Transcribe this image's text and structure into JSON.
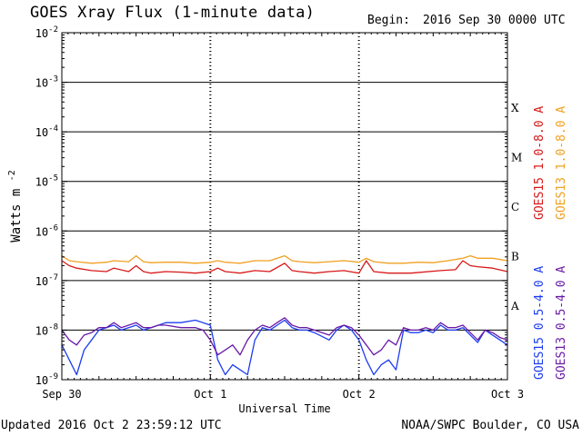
{
  "header": {
    "title": "GOES Xray Flux (1-minute data)",
    "begin_label": "Begin:",
    "begin_value": "2016 Sep 30 0000 UTC"
  },
  "footer": {
    "updated": "Updated 2016 Oct  2 23:59:12 UTC",
    "source": "NOAA/SWPC Boulder, CO USA"
  },
  "chart_data": {
    "type": "line",
    "title": "GOES Xray Flux (1-minute data)",
    "xlabel": "Universal Time",
    "ylabel": "Watts m",
    "ylabel_exponent": "-2",
    "yscale": "log",
    "ylim": [
      1e-09,
      0.01
    ],
    "xlim_days": [
      0,
      3
    ],
    "x_ticks": [
      {
        "day": 0,
        "label": "Sep 30"
      },
      {
        "day": 1,
        "label": "Oct 1"
      },
      {
        "day": 2,
        "label": "Oct 2"
      },
      {
        "day": 3,
        "label": "Oct 3"
      }
    ],
    "y_ticks": [
      {
        "base": "10",
        "exp": "-9",
        "value": -9
      },
      {
        "base": "10",
        "exp": "-8",
        "value": -8
      },
      {
        "base": "10",
        "exp": "-7",
        "value": -7
      },
      {
        "base": "10",
        "exp": "-6",
        "value": -6
      },
      {
        "base": "10",
        "exp": "-5",
        "value": -5
      },
      {
        "base": "10",
        "exp": "-4",
        "value": -4
      },
      {
        "base": "10",
        "exp": "-3",
        "value": -3
      },
      {
        "base": "10",
        "exp": "-2",
        "value": -2
      }
    ],
    "flare_classes": [
      {
        "label": "A",
        "value": -7.5
      },
      {
        "label": "B",
        "value": -6.5
      },
      {
        "label": "C",
        "value": -5.5
      },
      {
        "label": "M",
        "value": -4.5
      },
      {
        "label": "X",
        "value": -3.5
      }
    ],
    "grid": {
      "horizontal_lines": [
        -8,
        -7,
        -6,
        -5,
        -4,
        -3
      ],
      "dotted_day_lines": [
        1,
        2
      ]
    },
    "legend_placement": "right",
    "legend": [
      {
        "label": "GOES15 1.0-8.0 A",
        "color": "#d81818",
        "group": "long"
      },
      {
        "label": "GOES13 1.0-8.0 A",
        "color": "#f0a020",
        "group": "long"
      },
      {
        "label": "GOES15 0.5-4.0 A",
        "color": "#1c3cf0",
        "group": "short"
      },
      {
        "label": "GOES13 0.5-4.0 A",
        "color": "#6a1aa8",
        "group": "short"
      }
    ],
    "series": [
      {
        "name": "GOES13 1.0-8.0 A",
        "color": "#f0a020",
        "x": [
          0.0,
          0.05,
          0.1,
          0.2,
          0.3,
          0.35,
          0.45,
          0.5,
          0.55,
          0.6,
          0.7,
          0.8,
          0.9,
          1.0,
          1.05,
          1.1,
          1.2,
          1.3,
          1.4,
          1.5,
          1.55,
          1.6,
          1.7,
          1.8,
          1.9,
          2.0,
          2.05,
          2.1,
          2.2,
          2.3,
          2.4,
          2.5,
          2.6,
          2.7,
          2.75,
          2.8,
          2.9,
          3.0
        ],
        "values": [
          -6.5,
          -6.6,
          -6.62,
          -6.65,
          -6.63,
          -6.6,
          -6.62,
          -6.5,
          -6.62,
          -6.64,
          -6.63,
          -6.63,
          -6.65,
          -6.63,
          -6.6,
          -6.63,
          -6.65,
          -6.6,
          -6.6,
          -6.5,
          -6.6,
          -6.62,
          -6.64,
          -6.62,
          -6.6,
          -6.63,
          -6.55,
          -6.62,
          -6.65,
          -6.65,
          -6.63,
          -6.64,
          -6.6,
          -6.55,
          -6.5,
          -6.55,
          -6.55,
          -6.6
        ]
      },
      {
        "name": "GOES15 1.0-8.0 A",
        "color": "#d81818",
        "x": [
          0.0,
          0.05,
          0.1,
          0.2,
          0.3,
          0.35,
          0.45,
          0.5,
          0.55,
          0.6,
          0.7,
          0.8,
          0.9,
          1.0,
          1.05,
          1.1,
          1.2,
          1.3,
          1.4,
          1.5,
          1.55,
          1.6,
          1.7,
          1.8,
          1.9,
          2.0,
          2.05,
          2.1,
          2.2,
          2.3,
          2.35,
          2.55,
          2.65,
          2.7,
          2.75,
          2.8,
          2.9,
          3.0
        ],
        "values": [
          -6.6,
          -6.7,
          -6.75,
          -6.8,
          -6.82,
          -6.75,
          -6.82,
          -6.7,
          -6.82,
          -6.85,
          -6.82,
          -6.83,
          -6.85,
          -6.82,
          -6.75,
          -6.82,
          -6.85,
          -6.8,
          -6.82,
          -6.65,
          -6.8,
          -6.82,
          -6.85,
          -6.82,
          -6.8,
          -6.85,
          -6.6,
          -6.82,
          -6.85,
          -6.85,
          -6.85,
          -6.8,
          -6.78,
          -6.6,
          -6.7,
          -6.72,
          -6.75,
          -6.82
        ]
      },
      {
        "name": "GOES15 0.5-4.0 A",
        "color": "#1c3cf0",
        "x": [
          0.0,
          0.05,
          0.1,
          0.15,
          0.2,
          0.25,
          0.3,
          0.35,
          0.4,
          0.45,
          0.5,
          0.55,
          0.6,
          0.65,
          0.7,
          0.8,
          0.9,
          0.95,
          1.0,
          1.05,
          1.1,
          1.15,
          1.2,
          1.25,
          1.3,
          1.35,
          1.4,
          1.45,
          1.5,
          1.55,
          1.6,
          1.65,
          1.7,
          1.8,
          1.85,
          1.9,
          1.95,
          2.0,
          2.05,
          2.1,
          2.15,
          2.2,
          2.25,
          2.3,
          2.35,
          2.4,
          2.45,
          2.5,
          2.55,
          2.6,
          2.65,
          2.7,
          2.75,
          2.8,
          2.85,
          2.9,
          2.95,
          3.0
        ],
        "values": [
          -8.3,
          -8.6,
          -8.9,
          -8.4,
          -8.2,
          -8.0,
          -7.95,
          -7.9,
          -8.0,
          -7.95,
          -7.9,
          -8.0,
          -7.95,
          -7.9,
          -7.85,
          -7.85,
          -7.8,
          -7.85,
          -7.9,
          -8.6,
          -8.9,
          -8.7,
          -8.8,
          -8.9,
          -8.2,
          -7.95,
          -8.0,
          -7.9,
          -7.8,
          -7.95,
          -8.0,
          -8.0,
          -8.05,
          -8.2,
          -8.0,
          -7.9,
          -8.0,
          -8.2,
          -8.6,
          -8.9,
          -8.7,
          -8.6,
          -8.8,
          -8.0,
          -8.05,
          -8.05,
          -8.0,
          -8.05,
          -7.9,
          -8.0,
          -8.0,
          -7.95,
          -8.1,
          -8.25,
          -8.0,
          -8.1,
          -8.2,
          -8.3
        ]
      },
      {
        "name": "GOES13 0.5-4.0 A",
        "color": "#6a1aa8",
        "x": [
          0.0,
          0.05,
          0.1,
          0.15,
          0.2,
          0.25,
          0.3,
          0.35,
          0.4,
          0.45,
          0.5,
          0.55,
          0.6,
          0.65,
          0.7,
          0.8,
          0.9,
          0.95,
          1.0,
          1.05,
          1.1,
          1.15,
          1.2,
          1.25,
          1.3,
          1.35,
          1.4,
          1.45,
          1.5,
          1.55,
          1.6,
          1.65,
          1.7,
          1.8,
          1.85,
          1.9,
          1.95,
          2.0,
          2.05,
          2.1,
          2.15,
          2.2,
          2.25,
          2.3,
          2.35,
          2.4,
          2.45,
          2.5,
          2.55,
          2.6,
          2.65,
          2.7,
          2.75,
          2.8,
          2.85,
          2.9,
          2.95,
          3.0
        ],
        "values": [
          -8.0,
          -8.2,
          -8.3,
          -8.1,
          -8.05,
          -7.95,
          -7.95,
          -7.85,
          -7.95,
          -7.9,
          -7.85,
          -7.95,
          -7.95,
          -7.9,
          -7.9,
          -7.95,
          -7.95,
          -8.0,
          -8.2,
          -8.5,
          -8.4,
          -8.3,
          -8.5,
          -8.2,
          -8.0,
          -7.9,
          -7.95,
          -7.85,
          -7.75,
          -7.9,
          -7.95,
          -7.95,
          -8.0,
          -8.1,
          -7.95,
          -7.9,
          -7.95,
          -8.1,
          -8.3,
          -8.5,
          -8.4,
          -8.2,
          -8.3,
          -7.95,
          -8.0,
          -8.0,
          -7.95,
          -8.0,
          -7.85,
          -7.95,
          -7.95,
          -7.9,
          -8.05,
          -8.2,
          -8.0,
          -8.05,
          -8.15,
          -8.2
        ]
      }
    ]
  }
}
